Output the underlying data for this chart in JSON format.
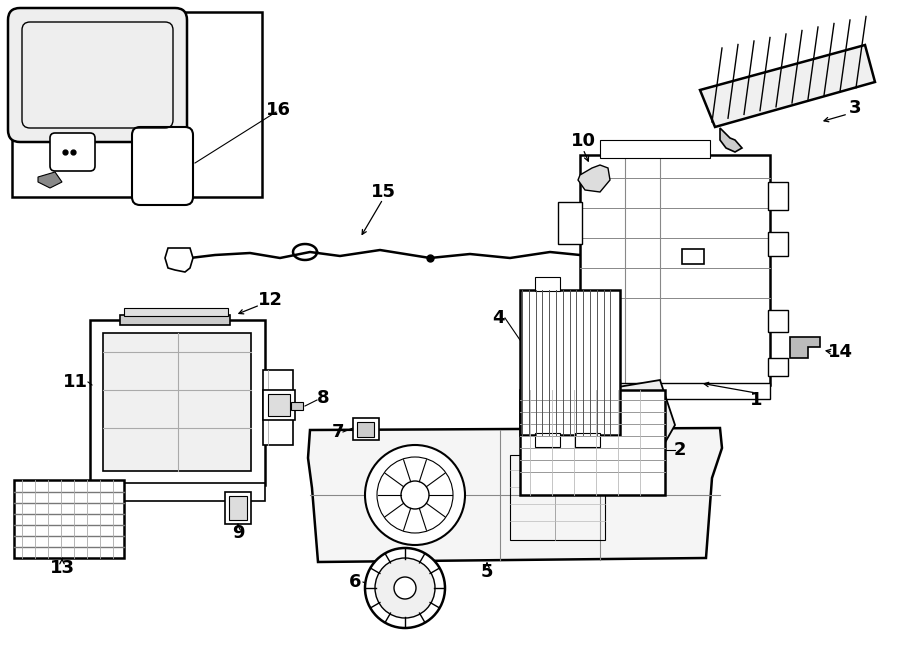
{
  "bg_color": "#ffffff",
  "lc": "#000000",
  "gray1": "#f0f0f0",
  "gray2": "#d8d8d8",
  "gray3": "#c0c0c0",
  "figw": 9.0,
  "figh": 6.62,
  "dpi": 100
}
